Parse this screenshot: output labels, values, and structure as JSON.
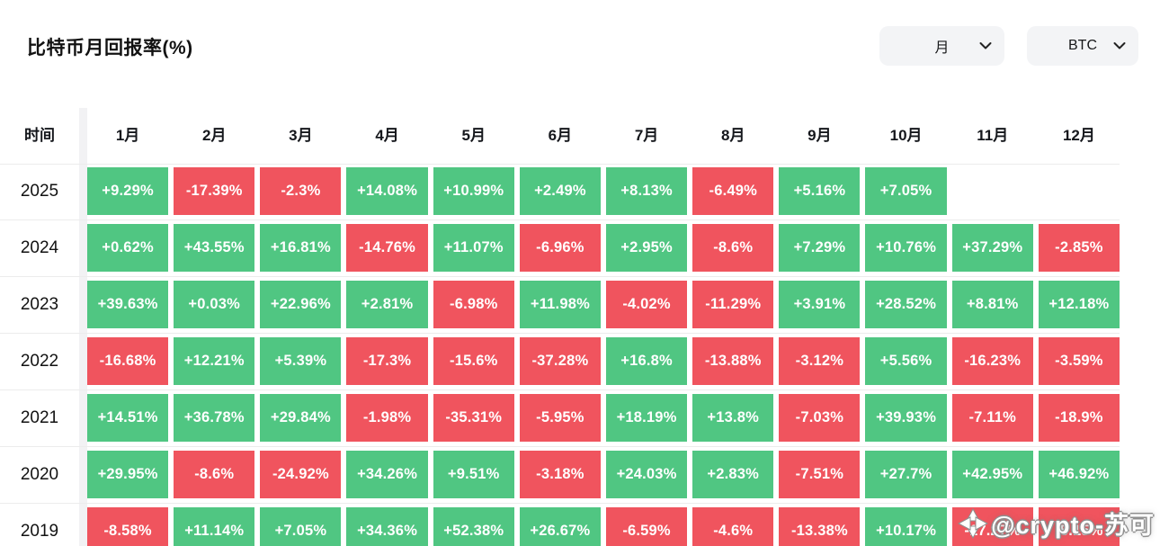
{
  "title": "比特币月回报率(%)",
  "controls": {
    "period_dropdown": {
      "value": "月"
    },
    "asset_dropdown": {
      "value": "BTC"
    }
  },
  "table": {
    "corner_label": "时间",
    "month_headers": [
      "1月",
      "2月",
      "3月",
      "4月",
      "5月",
      "6月",
      "7月",
      "8月",
      "9月",
      "10月",
      "11月",
      "12月"
    ],
    "rows": [
      {
        "year": "2025",
        "values": [
          "+9.29%",
          "-17.39%",
          "-2.3%",
          "+14.08%",
          "+10.99%",
          "+2.49%",
          "+8.13%",
          "-6.49%",
          "+5.16%",
          "+7.05%",
          "",
          ""
        ]
      },
      {
        "year": "2024",
        "values": [
          "+0.62%",
          "+43.55%",
          "+16.81%",
          "-14.76%",
          "+11.07%",
          "-6.96%",
          "+2.95%",
          "-8.6%",
          "+7.29%",
          "+10.76%",
          "+37.29%",
          "-2.85%"
        ]
      },
      {
        "year": "2023",
        "values": [
          "+39.63%",
          "+0.03%",
          "+22.96%",
          "+2.81%",
          "-6.98%",
          "+11.98%",
          "-4.02%",
          "-11.29%",
          "+3.91%",
          "+28.52%",
          "+8.81%",
          "+12.18%"
        ]
      },
      {
        "year": "2022",
        "values": [
          "-16.68%",
          "+12.21%",
          "+5.39%",
          "-17.3%",
          "-15.6%",
          "-37.28%",
          "+16.8%",
          "-13.88%",
          "-3.12%",
          "+5.56%",
          "-16.23%",
          "-3.59%"
        ]
      },
      {
        "year": "2021",
        "values": [
          "+14.51%",
          "+36.78%",
          "+29.84%",
          "-1.98%",
          "-35.31%",
          "-5.95%",
          "+18.19%",
          "+13.8%",
          "-7.03%",
          "+39.93%",
          "-7.11%",
          "-18.9%"
        ]
      },
      {
        "year": "2020",
        "values": [
          "+29.95%",
          "-8.6%",
          "-24.92%",
          "+34.26%",
          "+9.51%",
          "-3.18%",
          "+24.03%",
          "+2.83%",
          "-7.51%",
          "+27.7%",
          "+42.95%",
          "+46.92%"
        ]
      },
      {
        "year": "2019",
        "values": [
          "-8.58%",
          "+11.14%",
          "+7.05%",
          "+34.36%",
          "+52.38%",
          "+26.67%",
          "-6.59%",
          "-4.6%",
          "-13.38%",
          "+10.17%",
          "-17.27%",
          "-5.15%"
        ]
      }
    ]
  },
  "watermark": {
    "text": "@crypto-苏可"
  },
  "colors": {
    "positive": "#50C682",
    "negative": "#F0545E"
  },
  "chart_data": {
    "type": "heatmap",
    "title": "比特币月回报率(%)",
    "unit": "%",
    "x_labels": [
      "1月",
      "2月",
      "3月",
      "4月",
      "5月",
      "6月",
      "7月",
      "8月",
      "9月",
      "10月",
      "11月",
      "12月"
    ],
    "y_labels": [
      "2025",
      "2024",
      "2023",
      "2022",
      "2021",
      "2020",
      "2019"
    ],
    "series": [
      {
        "name": "2025",
        "values": [
          9.29,
          -17.39,
          -2.3,
          14.08,
          10.99,
          2.49,
          8.13,
          -6.49,
          5.16,
          7.05,
          null,
          null
        ]
      },
      {
        "name": "2024",
        "values": [
          0.62,
          43.55,
          16.81,
          -14.76,
          11.07,
          -6.96,
          2.95,
          -8.6,
          7.29,
          10.76,
          37.29,
          -2.85
        ]
      },
      {
        "name": "2023",
        "values": [
          39.63,
          0.03,
          22.96,
          2.81,
          -6.98,
          11.98,
          -4.02,
          -11.29,
          3.91,
          28.52,
          8.81,
          12.18
        ]
      },
      {
        "name": "2022",
        "values": [
          -16.68,
          12.21,
          5.39,
          -17.3,
          -15.6,
          -37.28,
          16.8,
          -13.88,
          -3.12,
          5.56,
          -16.23,
          -3.59
        ]
      },
      {
        "name": "2021",
        "values": [
          14.51,
          36.78,
          29.84,
          -1.98,
          -35.31,
          -5.95,
          18.19,
          13.8,
          -7.03,
          39.93,
          -7.11,
          -18.9
        ]
      },
      {
        "name": "2020",
        "values": [
          29.95,
          -8.6,
          -24.92,
          34.26,
          9.51,
          -3.18,
          24.03,
          2.83,
          -7.51,
          27.7,
          42.95,
          46.92
        ]
      },
      {
        "name": "2019",
        "values": [
          -8.58,
          11.14,
          7.05,
          34.36,
          52.38,
          26.67,
          -6.59,
          -4.6,
          -13.38,
          10.17,
          -17.27,
          -5.15
        ]
      }
    ],
    "legend": "none",
    "color_rule": "positive=green(#50C682), negative=red(#F0545E)"
  }
}
